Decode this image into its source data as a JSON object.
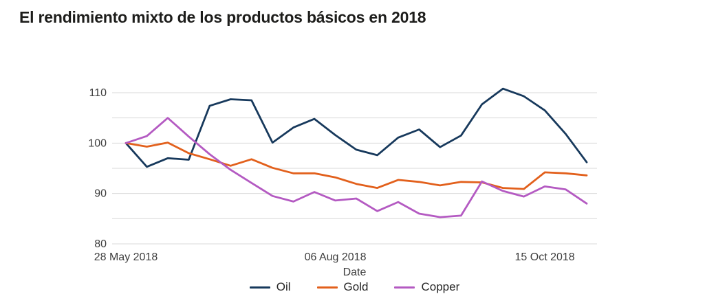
{
  "chart_data": {
    "type": "line",
    "title": "El rendimiento mixto de los productos básicos en 2018",
    "xlabel": "Date",
    "ylabel": "",
    "grid": "horizontal",
    "legend_position": "bottom",
    "ylim": [
      80,
      110
    ],
    "y_tick_labels": [
      80,
      90,
      100,
      110
    ],
    "y_gridlines": [
      80,
      85,
      90,
      95,
      100,
      105,
      110
    ],
    "x_tick_marks": [
      {
        "index": 0,
        "label": "28 May 2018"
      },
      {
        "index": 10,
        "label": "06 Aug 2018"
      },
      {
        "index": 20,
        "label": "15 Oct 2018"
      }
    ],
    "x": [
      "28 May 2018",
      "04 Jun 2018",
      "11 Jun 2018",
      "18 Jun 2018",
      "25 Jun 2018",
      "02 Jul 2018",
      "09 Jul 2018",
      "16 Jul 2018",
      "23 Jul 2018",
      "30 Jul 2018",
      "06 Aug 2018",
      "13 Aug 2018",
      "20 Aug 2018",
      "27 Aug 2018",
      "03 Sep 2018",
      "10 Sep 2018",
      "17 Sep 2018",
      "24 Sep 2018",
      "01 Oct 2018",
      "08 Oct 2018",
      "15 Oct 2018",
      "22 Oct 2018",
      "29 Oct 2018"
    ],
    "series": [
      {
        "name": "Oil",
        "color": "#17395c",
        "values": [
          100,
          95.3,
          97.0,
          96.7,
          107.4,
          108.7,
          108.5,
          100.1,
          103.1,
          104.8,
          101.6,
          98.7,
          97.6,
          101.1,
          102.7,
          99.2,
          101.5,
          107.7,
          110.8,
          109.3,
          106.5,
          101.8,
          96.2
        ]
      },
      {
        "name": "Gold",
        "color": "#e2601c",
        "values": [
          100,
          99.3,
          100.1,
          98.0,
          96.8,
          95.5,
          96.8,
          95.1,
          94.0,
          94.0,
          93.2,
          91.9,
          91.1,
          92.7,
          92.3,
          91.6,
          92.3,
          92.2,
          91.1,
          90.9,
          94.2,
          94.0,
          93.6
        ]
      },
      {
        "name": "Copper",
        "color": "#b45ac2",
        "values": [
          100,
          101.4,
          105.0,
          101.3,
          97.8,
          94.7,
          92.1,
          89.5,
          88.4,
          90.3,
          88.6,
          89.0,
          86.5,
          88.3,
          86.0,
          85.3,
          85.6,
          92.4,
          90.5,
          89.4,
          91.4,
          90.8,
          88.0
        ]
      }
    ],
    "gridline_color": "#d9d9d9",
    "tick_label_color": "#3d3d3d",
    "title_color": "#1d1d1b"
  }
}
